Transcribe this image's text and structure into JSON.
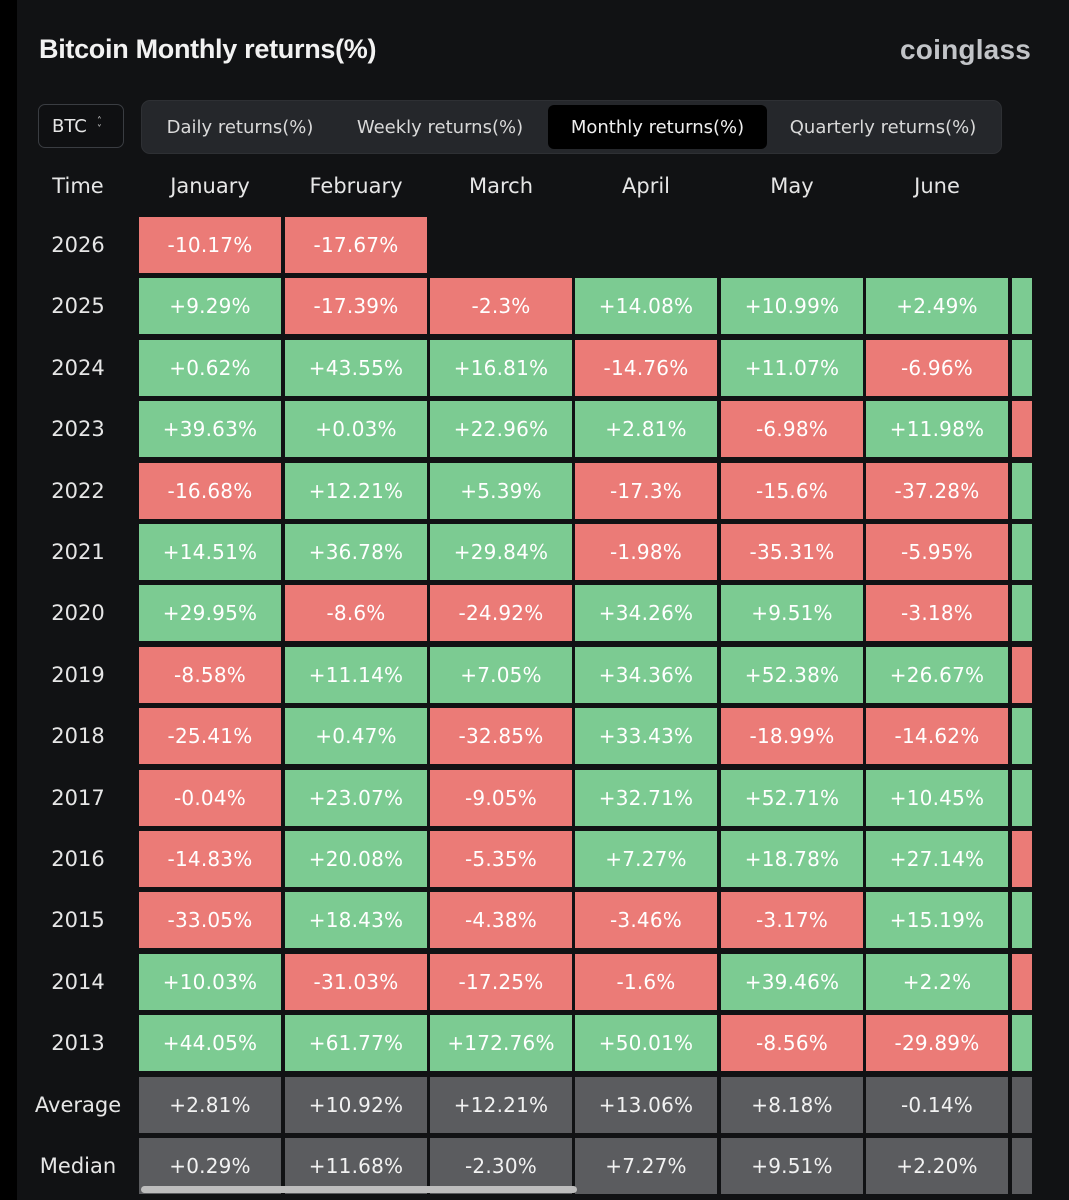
{
  "title": "Bitcoin Monthly returns(%)",
  "brand": "coinglass",
  "selector": {
    "value": "BTC",
    "icon": "chevron-up-down-icon"
  },
  "tabs": [
    {
      "label": "Daily returns(%)",
      "active": false
    },
    {
      "label": "Weekly returns(%)",
      "active": false
    },
    {
      "label": "Monthly returns(%)",
      "active": true
    },
    {
      "label": "Quarterly returns(%)",
      "active": false
    }
  ],
  "table": {
    "headers": [
      "Time",
      "January",
      "February",
      "March",
      "April",
      "May",
      "June"
    ],
    "rows": [
      {
        "year": "2026",
        "values": [
          "-10.17%",
          "-17.67%",
          "",
          "",
          "",
          ""
        ],
        "next": ""
      },
      {
        "year": "2025",
        "values": [
          "+9.29%",
          "-17.39%",
          "-2.3%",
          "+14.08%",
          "+10.99%",
          "+2.49%"
        ],
        "next": "pos"
      },
      {
        "year": "2024",
        "values": [
          "+0.62%",
          "+43.55%",
          "+16.81%",
          "-14.76%",
          "+11.07%",
          "-6.96%"
        ],
        "next": "pos"
      },
      {
        "year": "2023",
        "values": [
          "+39.63%",
          "+0.03%",
          "+22.96%",
          "+2.81%",
          "-6.98%",
          "+11.98%"
        ],
        "next": "neg"
      },
      {
        "year": "2022",
        "values": [
          "-16.68%",
          "+12.21%",
          "+5.39%",
          "-17.3%",
          "-15.6%",
          "-37.28%"
        ],
        "next": "pos"
      },
      {
        "year": "2021",
        "values": [
          "+14.51%",
          "+36.78%",
          "+29.84%",
          "-1.98%",
          "-35.31%",
          "-5.95%"
        ],
        "next": "pos"
      },
      {
        "year": "2020",
        "values": [
          "+29.95%",
          "-8.6%",
          "-24.92%",
          "+34.26%",
          "+9.51%",
          "-3.18%"
        ],
        "next": "pos"
      },
      {
        "year": "2019",
        "values": [
          "-8.58%",
          "+11.14%",
          "+7.05%",
          "+34.36%",
          "+52.38%",
          "+26.67%"
        ],
        "next": "neg"
      },
      {
        "year": "2018",
        "values": [
          "-25.41%",
          "+0.47%",
          "-32.85%",
          "+33.43%",
          "-18.99%",
          "-14.62%"
        ],
        "next": "pos"
      },
      {
        "year": "2017",
        "values": [
          "-0.04%",
          "+23.07%",
          "-9.05%",
          "+32.71%",
          "+52.71%",
          "+10.45%"
        ],
        "next": "pos"
      },
      {
        "year": "2016",
        "values": [
          "-14.83%",
          "+20.08%",
          "-5.35%",
          "+7.27%",
          "+18.78%",
          "+27.14%"
        ],
        "next": "neg"
      },
      {
        "year": "2015",
        "values": [
          "-33.05%",
          "+18.43%",
          "-4.38%",
          "-3.46%",
          "-3.17%",
          "+15.19%"
        ],
        "next": "pos"
      },
      {
        "year": "2014",
        "values": [
          "+10.03%",
          "-31.03%",
          "-17.25%",
          "-1.6%",
          "+39.46%",
          "+2.2%"
        ],
        "next": "neg"
      },
      {
        "year": "2013",
        "values": [
          "+44.05%",
          "+61.77%",
          "+172.76%",
          "+50.01%",
          "-8.56%",
          "-29.89%"
        ],
        "next": "pos"
      }
    ],
    "summary": [
      {
        "label": "Average",
        "values": [
          "+2.81%",
          "+10.92%",
          "+12.21%",
          "+13.06%",
          "+8.18%",
          "-0.14%"
        ]
      },
      {
        "label": "Median",
        "values": [
          "+0.29%",
          "+11.68%",
          "-2.30%",
          "+7.27%",
          "+9.51%",
          "+2.20%"
        ]
      }
    ]
  },
  "colors": {
    "positive": "#7ccb92",
    "negative": "#eb7b77",
    "summary": "#5b5c5f"
  },
  "horizontal_scroll_fraction": 0.42
}
